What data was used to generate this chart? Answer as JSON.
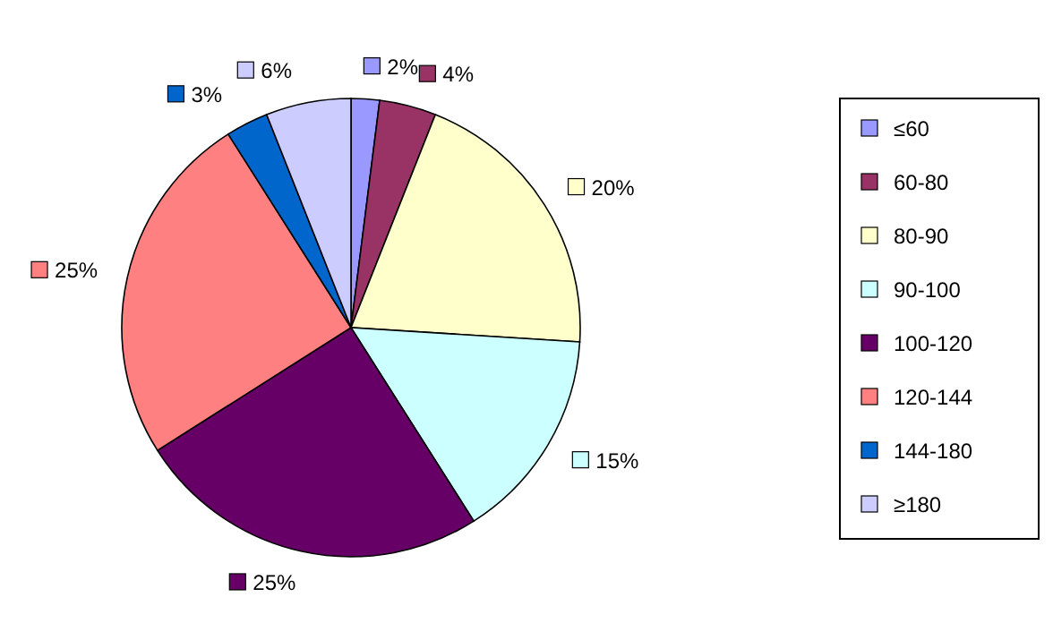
{
  "chart_data": {
    "type": "pie",
    "categories": [
      "≤60",
      "60-80",
      "80-90",
      "90-100",
      "100-120",
      "120-144",
      "144-180",
      "≥180"
    ],
    "values": [
      2,
      4,
      20,
      15,
      25,
      25,
      3,
      6
    ],
    "colors": [
      "#9999ff",
      "#993366",
      "#ffffcc",
      "#ccffff",
      "#660066",
      "#ff8080",
      "#0066cc",
      "#ccccff"
    ],
    "value_labels": [
      "2%",
      "4%",
      "20%",
      "15%",
      "25%",
      "25%",
      "3%",
      "6%"
    ],
    "legend": "right"
  }
}
